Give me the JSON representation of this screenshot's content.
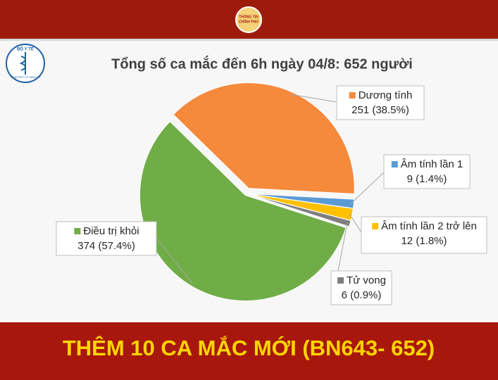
{
  "chart_data": {
    "type": "pie",
    "title": "Tổng số ca mắc đến 6h ngày 04/8: 652 người",
    "categories": [
      "Dương tính",
      "Âm tính lần 1",
      "Âm tính lần 2 trở lên",
      "Tử vong",
      "Điều trị khỏi"
    ],
    "values": [
      251,
      9,
      12,
      6,
      374
    ],
    "value_labels": [
      "251 (38.5%)",
      "9 (1.4%)",
      "12 (1.8%)",
      "6 (0.9%)",
      "374 (57.4%)"
    ],
    "colors": [
      "#f58a3c",
      "#5b9bd5",
      "#ffc000",
      "#7f7f7f",
      "#70ad47"
    ]
  },
  "header_logo": [
    "THÔNG TIN",
    "CHÍNH PHỦ"
  ],
  "ministry_logo": {
    "name": "BỘ Y TẾ",
    "subtitle": "MINISTRY OF HEALTH"
  },
  "banner": "THÊM 10 CA MẮC MỚI (BN643- 652)"
}
